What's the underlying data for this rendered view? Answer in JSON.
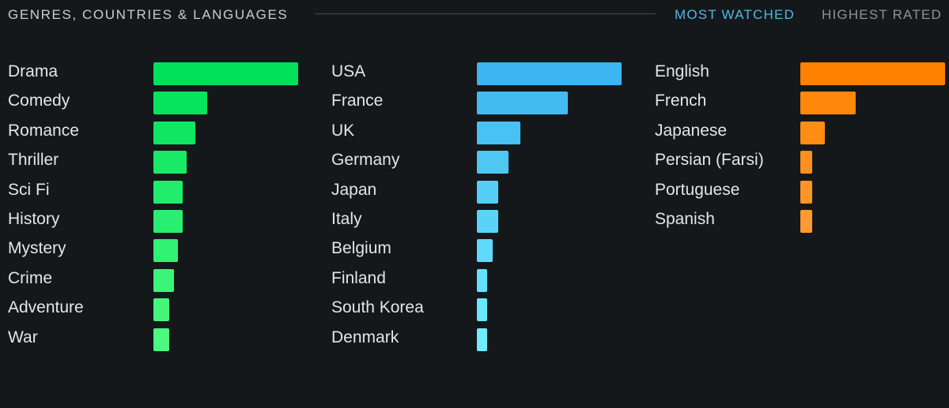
{
  "header": {
    "title": "GENRES, COUNTRIES & LANGUAGES",
    "tabs": [
      {
        "label": "MOST WATCHED",
        "active": true
      },
      {
        "label": "HIGHEST RATED",
        "active": false
      }
    ]
  },
  "colors": {
    "genres": [
      "#00e05a",
      "#4cfa80"
    ],
    "countries": [
      "#3db5f0",
      "#70ecff"
    ],
    "languages": [
      "#ff8200",
      "#ff9a30"
    ],
    "background": "#14181b",
    "active_tab": "#4fb8e6",
    "inactive_tab": "#8d9296"
  },
  "chart_data": [
    {
      "type": "bar",
      "orientation": "horizontal",
      "categories": [
        "Drama",
        "Comedy",
        "Romance",
        "Thriller",
        "Sci Fi",
        "History",
        "Mystery",
        "Crime",
        "Adventure",
        "War"
      ],
      "values": [
        100,
        37,
        29,
        23,
        20,
        20,
        17,
        14,
        11,
        11
      ]
    },
    {
      "type": "bar",
      "orientation": "horizontal",
      "categories": [
        "USA",
        "France",
        "UK",
        "Germany",
        "Japan",
        "Italy",
        "Belgium",
        "Finland",
        "South Korea",
        "Denmark"
      ],
      "values": [
        100,
        63,
        30,
        22,
        15,
        15,
        11,
        7,
        7,
        7
      ]
    },
    {
      "type": "bar",
      "orientation": "horizontal",
      "categories": [
        "English",
        "French",
        "Japanese",
        "Persian (Farsi)",
        "Portuguese",
        "Spanish"
      ],
      "values": [
        100,
        38,
        17,
        8,
        8,
        8
      ]
    }
  ]
}
